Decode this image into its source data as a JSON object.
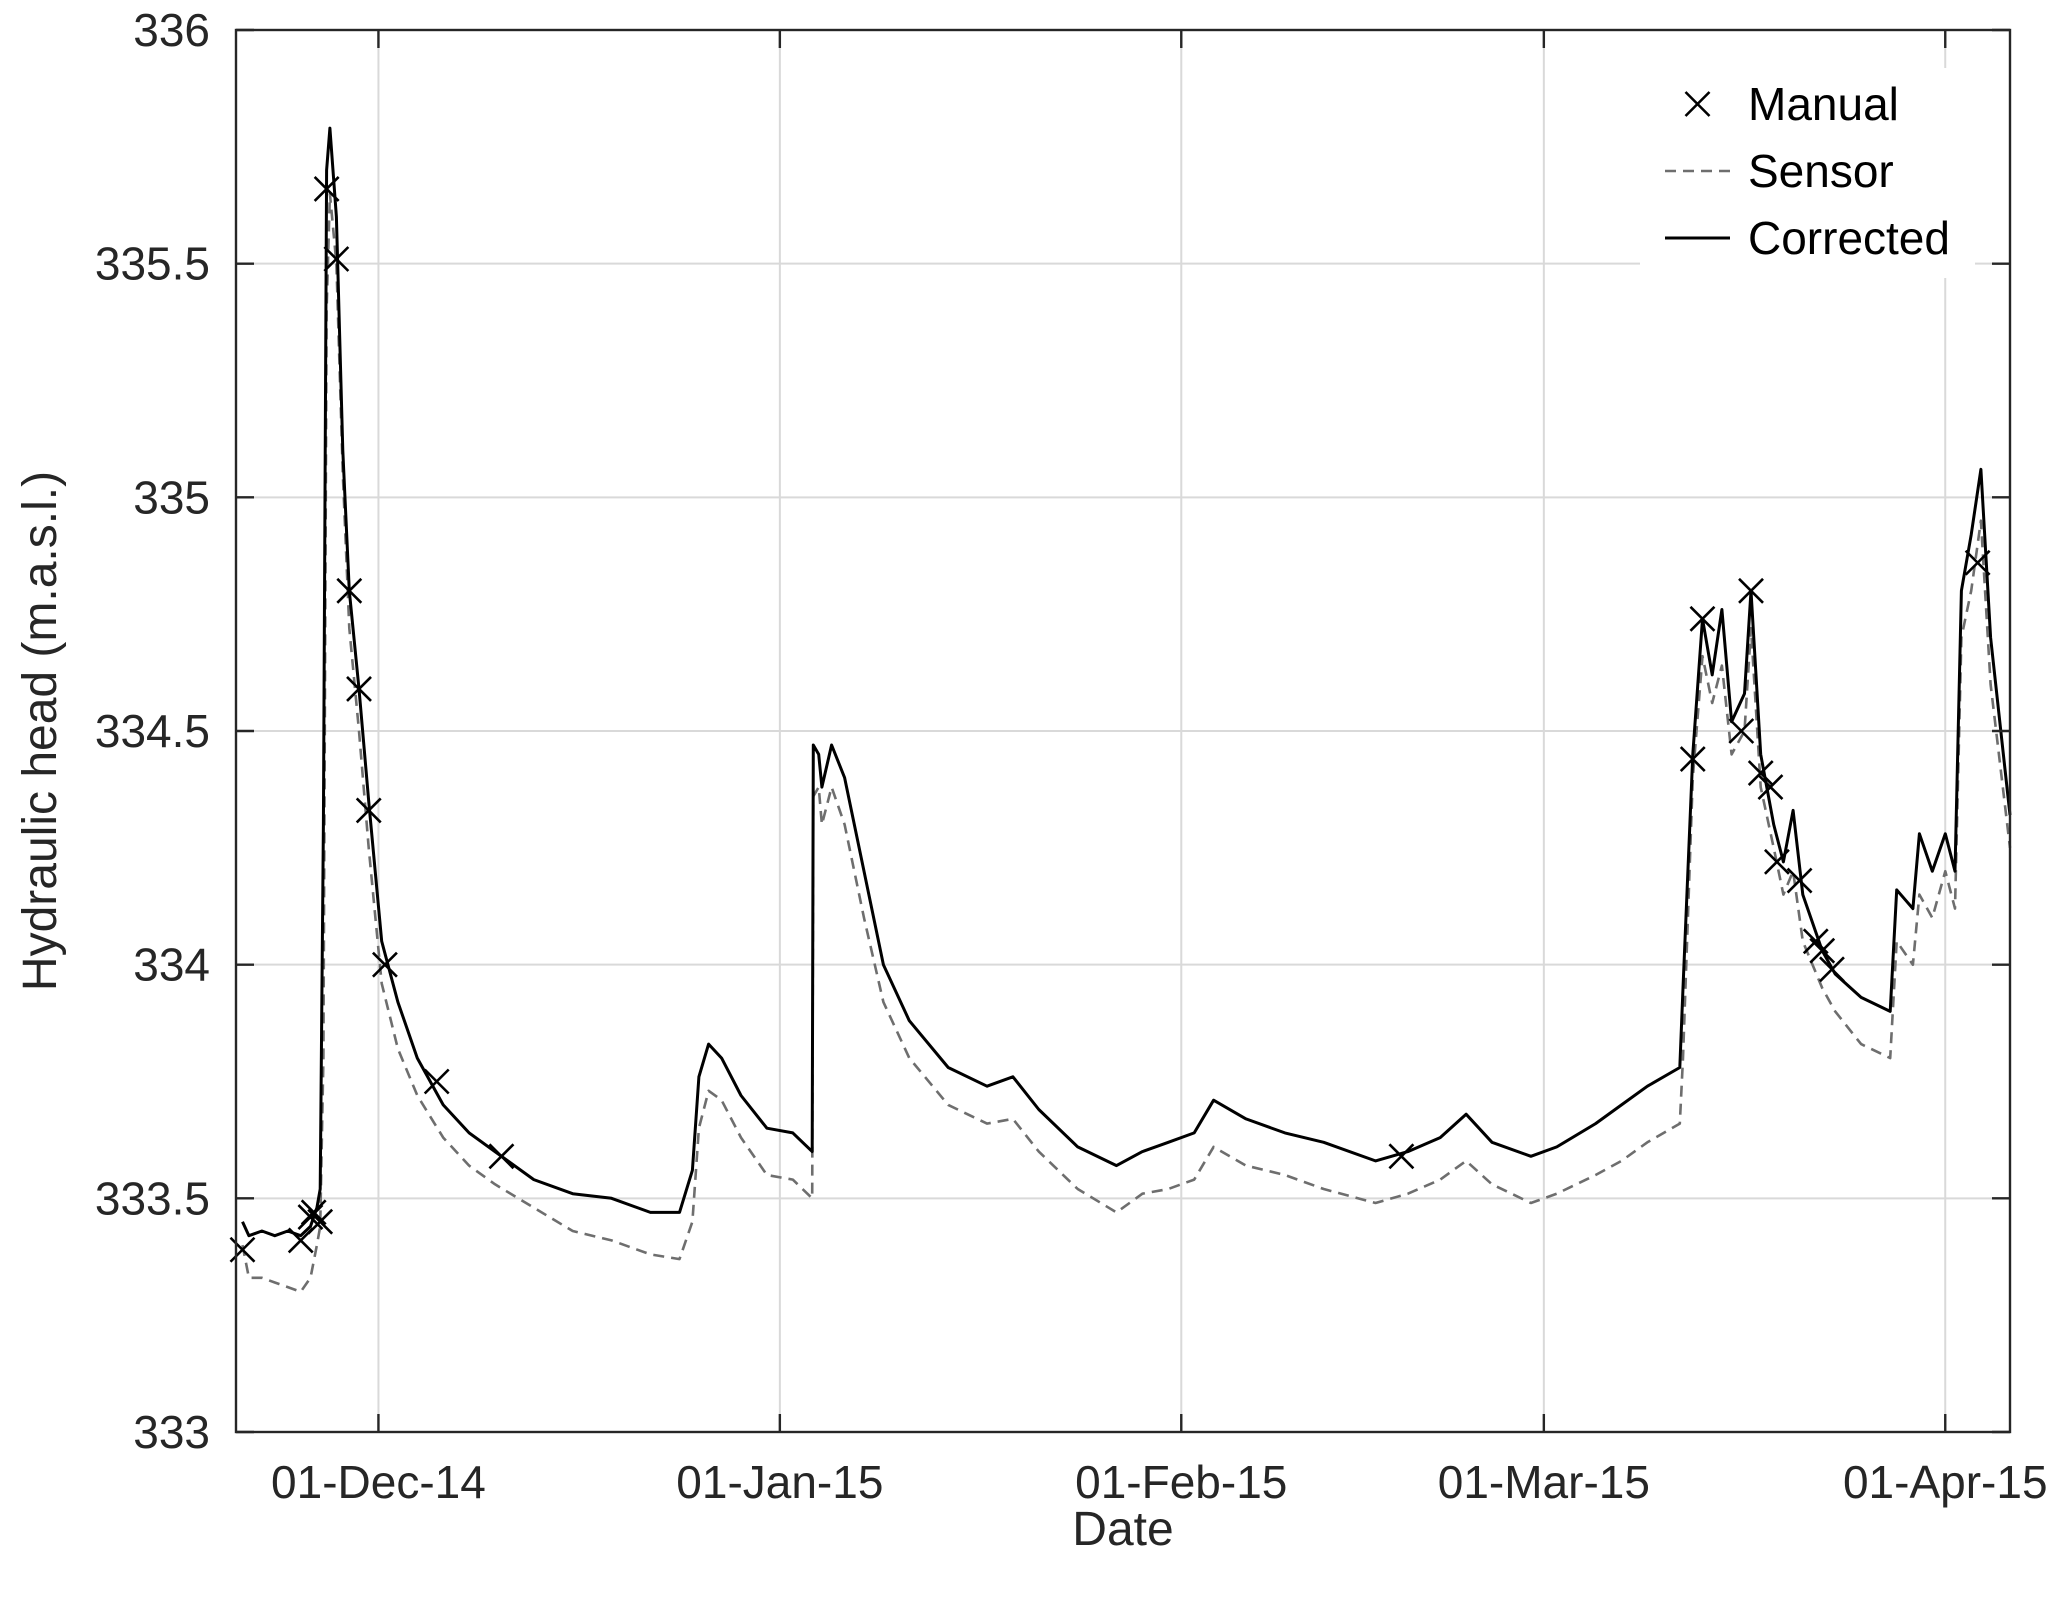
{
  "chart_data": {
    "type": "line",
    "xlabel": "Date",
    "ylabel": "Hydraulic head (m.a.s.l.)",
    "x_axis_type": "date",
    "xlim": [
      "2014-11-20",
      "2015-04-06"
    ],
    "ylim": [
      333,
      336
    ],
    "x_ticks": [
      {
        "date": "2014-12-01",
        "label": "01-Dec-14"
      },
      {
        "date": "2015-01-01",
        "label": "01-Jan-15"
      },
      {
        "date": "2015-02-01",
        "label": "01-Feb-15"
      },
      {
        "date": "2015-03-01",
        "label": "01-Mar-15"
      },
      {
        "date": "2015-04-01",
        "label": "01-Apr-15"
      }
    ],
    "y_ticks": [
      {
        "value": 333,
        "label": "333"
      },
      {
        "value": 333.5,
        "label": "333.5"
      },
      {
        "value": 334,
        "label": "334"
      },
      {
        "value": 334.5,
        "label": "334.5"
      },
      {
        "value": 335,
        "label": "335"
      },
      {
        "value": 335.5,
        "label": "335.5"
      },
      {
        "value": 336,
        "label": "336"
      }
    ],
    "grid": true,
    "legend_position": "top-right",
    "series": [
      {
        "name": "Manual",
        "style": "x-marker",
        "color": "#000000",
        "points": [
          [
            "2014-11-20 12:00",
            333.39
          ],
          [
            "2014-11-25 00:00",
            333.41
          ],
          [
            "2014-11-25 18:00",
            333.46
          ],
          [
            "2014-11-26 00:00",
            333.47
          ],
          [
            "2014-11-26 12:00",
            333.45
          ],
          [
            "2014-11-27 00:00",
            335.66
          ],
          [
            "2014-11-27 18:00",
            335.51
          ],
          [
            "2014-11-28 18:00",
            334.8
          ],
          [
            "2014-11-29 12:00",
            334.59
          ],
          [
            "2014-11-30 06:00",
            334.33
          ],
          [
            "2014-12-01 12:00",
            334.0
          ],
          [
            "2014-12-05 12:00",
            333.75
          ],
          [
            "2014-12-10 12:00",
            333.59
          ],
          [
            "2015-02-18 00:00",
            333.59
          ],
          [
            "2015-03-12 12:00",
            334.44
          ],
          [
            "2015-03-13 06:00",
            334.74
          ],
          [
            "2015-03-16 06:00",
            334.5
          ],
          [
            "2015-03-17 00:00",
            334.8
          ],
          [
            "2015-03-17 18:00",
            334.41
          ],
          [
            "2015-03-18 12:00",
            334.38
          ],
          [
            "2015-03-19 00:00",
            334.22
          ],
          [
            "2015-03-20 18:00",
            334.18
          ],
          [
            "2015-03-22 00:00",
            334.05
          ],
          [
            "2015-03-22 12:00",
            334.03
          ],
          [
            "2015-03-23 06:00",
            333.99
          ],
          [
            "2015-04-03 12:00",
            334.86
          ]
        ]
      },
      {
        "name": "Sensor",
        "style": "dashed",
        "color": "#6e6e6e",
        "points": [
          [
            "2014-11-20 12:00",
            333.4
          ],
          [
            "2014-11-21 00:00",
            333.33
          ],
          [
            "2014-11-22 00:00",
            333.33
          ],
          [
            "2014-11-23 00:00",
            333.32
          ],
          [
            "2014-11-24 00:00",
            333.31
          ],
          [
            "2014-11-25 00:00",
            333.3
          ],
          [
            "2014-11-25 18:00",
            333.33
          ],
          [
            "2014-11-26 06:00",
            333.4
          ],
          [
            "2014-11-26 12:00",
            333.44
          ],
          [
            "2014-11-26 18:00",
            333.8
          ],
          [
            "2014-11-27 00:00",
            335.4
          ],
          [
            "2014-11-27 06:00",
            335.65
          ],
          [
            "2014-11-27 18:00",
            335.5
          ],
          [
            "2014-11-28 06:00",
            335.05
          ],
          [
            "2014-11-28 18:00",
            334.72
          ],
          [
            "2014-11-29 12:00",
            334.5
          ],
          [
            "2014-11-30 06:00",
            334.25
          ],
          [
            "2014-12-01 06:00",
            333.96
          ],
          [
            "2014-12-02 12:00",
            333.82
          ],
          [
            "2014-12-04 00:00",
            333.72
          ],
          [
            "2014-12-06 00:00",
            333.63
          ],
          [
            "2014-12-08 00:00",
            333.57
          ],
          [
            "2014-12-10 00:00",
            333.53
          ],
          [
            "2014-12-13 00:00",
            333.48
          ],
          [
            "2014-12-16 00:00",
            333.43
          ],
          [
            "2014-12-19 00:00",
            333.41
          ],
          [
            "2014-12-22 00:00",
            333.38
          ],
          [
            "2014-12-24 06:00",
            333.37
          ],
          [
            "2014-12-25 06:00",
            333.45
          ],
          [
            "2014-12-25 18:00",
            333.65
          ],
          [
            "2014-12-26 12:00",
            333.73
          ],
          [
            "2014-12-27 12:00",
            333.71
          ],
          [
            "2014-12-29 00:00",
            333.63
          ],
          [
            "2014-12-31 00:00",
            333.55
          ],
          [
            "2015-01-02 00:00",
            333.54
          ],
          [
            "2015-01-03 12:00",
            333.5
          ],
          [
            "2015-01-03 14:00",
            334.36
          ],
          [
            "2015-01-04 00:00",
            334.38
          ],
          [
            "2015-01-04 06:00",
            334.3
          ],
          [
            "2015-01-05 00:00",
            334.38
          ],
          [
            "2015-01-06 00:00",
            334.3
          ],
          [
            "2015-01-07 12:00",
            334.1
          ],
          [
            "2015-01-09 00:00",
            333.92
          ],
          [
            "2015-01-11 00:00",
            333.8
          ],
          [
            "2015-01-14 00:00",
            333.7
          ],
          [
            "2015-01-17 00:00",
            333.66
          ],
          [
            "2015-01-19 00:00",
            333.67
          ],
          [
            "2015-01-21 00:00",
            333.6
          ],
          [
            "2015-01-24 00:00",
            333.52
          ],
          [
            "2015-01-27 00:00",
            333.47
          ],
          [
            "2015-01-29 00:00",
            333.51
          ],
          [
            "2015-01-31 00:00",
            333.52
          ],
          [
            "2015-02-02 00:00",
            333.54
          ],
          [
            "2015-02-03 12:00",
            333.61
          ],
          [
            "2015-02-06 00:00",
            333.57
          ],
          [
            "2015-02-09 00:00",
            333.55
          ],
          [
            "2015-02-12 00:00",
            333.52
          ],
          [
            "2015-02-16 00:00",
            333.49
          ],
          [
            "2015-02-18 12:00",
            333.51
          ],
          [
            "2015-02-21 00:00",
            333.54
          ],
          [
            "2015-02-23 00:00",
            333.58
          ],
          [
            "2015-02-25 00:00",
            333.53
          ],
          [
            "2015-02-28 00:00",
            333.49
          ],
          [
            "2015-03-02 00:00",
            333.51
          ],
          [
            "2015-03-05 00:00",
            333.55
          ],
          [
            "2015-03-07 00:00",
            333.58
          ],
          [
            "2015-03-09 00:00",
            333.62
          ],
          [
            "2015-03-11 12:00",
            333.66
          ],
          [
            "2015-03-11 18:00",
            333.8
          ],
          [
            "2015-03-12 12:00",
            334.4
          ],
          [
            "2015-03-13 06:00",
            334.66
          ],
          [
            "2015-03-14 00:00",
            334.56
          ],
          [
            "2015-03-14 18:00",
            334.64
          ],
          [
            "2015-03-15 12:00",
            334.45
          ],
          [
            "2015-03-16 12:00",
            334.5
          ],
          [
            "2015-03-17 00:00",
            334.72
          ],
          [
            "2015-03-17 18:00",
            334.38
          ],
          [
            "2015-03-18 18:00",
            334.25
          ],
          [
            "2015-03-19 12:00",
            334.15
          ],
          [
            "2015-03-20 06:00",
            334.2
          ],
          [
            "2015-03-21 00:00",
            334.05
          ],
          [
            "2015-03-22 12:00",
            333.95
          ],
          [
            "2015-03-23 12:00",
            333.9
          ],
          [
            "2015-03-25 12:00",
            333.83
          ],
          [
            "2015-03-27 18:00",
            333.8
          ],
          [
            "2015-03-28 06:00",
            334.05
          ],
          [
            "2015-03-29 12:00",
            334.0
          ],
          [
            "2015-03-30 00:00",
            334.15
          ],
          [
            "2015-03-31 00:00",
            334.1
          ],
          [
            "2015-04-01 00:00",
            334.2
          ],
          [
            "2015-04-01 18:00",
            334.12
          ],
          [
            "2015-04-02 06:00",
            334.7
          ],
          [
            "2015-04-03 00:00",
            334.8
          ],
          [
            "2015-04-03 18:00",
            334.95
          ],
          [
            "2015-04-04 12:00",
            334.6
          ],
          [
            "2015-04-06 00:00",
            334.25
          ]
        ]
      },
      {
        "name": "Corrected",
        "style": "solid",
        "color": "#000000",
        "points": [
          [
            "2014-11-20 12:00",
            333.45
          ],
          [
            "2014-11-21 00:00",
            333.42
          ],
          [
            "2014-11-22 00:00",
            333.43
          ],
          [
            "2014-11-23 00:00",
            333.42
          ],
          [
            "2014-11-24 00:00",
            333.43
          ],
          [
            "2014-11-25 00:00",
            333.42
          ],
          [
            "2014-11-25 18:00",
            333.44
          ],
          [
            "2014-11-26 06:00",
            333.48
          ],
          [
            "2014-11-26 12:00",
            333.52
          ],
          [
            "2014-11-26 18:00",
            334.3
          ],
          [
            "2014-11-27 00:00",
            335.7
          ],
          [
            "2014-11-27 06:00",
            335.79
          ],
          [
            "2014-11-27 18:00",
            335.6
          ],
          [
            "2014-11-28 06:00",
            335.1
          ],
          [
            "2014-11-28 18:00",
            334.8
          ],
          [
            "2014-11-29 12:00",
            334.59
          ],
          [
            "2014-11-30 06:00",
            334.35
          ],
          [
            "2014-12-01 06:00",
            334.05
          ],
          [
            "2014-12-02 12:00",
            333.92
          ],
          [
            "2014-12-04 00:00",
            333.8
          ],
          [
            "2014-12-06 00:00",
            333.7
          ],
          [
            "2014-12-08 00:00",
            333.64
          ],
          [
            "2014-12-10 00:00",
            333.6
          ],
          [
            "2014-12-13 00:00",
            333.54
          ],
          [
            "2014-12-16 00:00",
            333.51
          ],
          [
            "2014-12-19 00:00",
            333.5
          ],
          [
            "2014-12-22 00:00",
            333.47
          ],
          [
            "2014-12-24 06:00",
            333.47
          ],
          [
            "2014-12-25 06:00",
            333.56
          ],
          [
            "2014-12-25 18:00",
            333.76
          ],
          [
            "2014-12-26 12:00",
            333.83
          ],
          [
            "2014-12-27 12:00",
            333.8
          ],
          [
            "2014-12-29 00:00",
            333.72
          ],
          [
            "2014-12-31 00:00",
            333.65
          ],
          [
            "2015-01-02 00:00",
            333.64
          ],
          [
            "2015-01-03 12:00",
            333.6
          ],
          [
            "2015-01-03 14:00",
            334.47
          ],
          [
            "2015-01-04 00:00",
            334.45
          ],
          [
            "2015-01-04 06:00",
            334.38
          ],
          [
            "2015-01-05 00:00",
            334.47
          ],
          [
            "2015-01-06 00:00",
            334.4
          ],
          [
            "2015-01-07 12:00",
            334.2
          ],
          [
            "2015-01-09 00:00",
            334.0
          ],
          [
            "2015-01-11 00:00",
            333.88
          ],
          [
            "2015-01-14 00:00",
            333.78
          ],
          [
            "2015-01-17 00:00",
            333.74
          ],
          [
            "2015-01-19 00:00",
            333.76
          ],
          [
            "2015-01-21 00:00",
            333.69
          ],
          [
            "2015-01-24 00:00",
            333.61
          ],
          [
            "2015-01-27 00:00",
            333.57
          ],
          [
            "2015-01-29 00:00",
            333.6
          ],
          [
            "2015-01-31 00:00",
            333.62
          ],
          [
            "2015-02-02 00:00",
            333.64
          ],
          [
            "2015-02-03 12:00",
            333.71
          ],
          [
            "2015-02-06 00:00",
            333.67
          ],
          [
            "2015-02-09 00:00",
            333.64
          ],
          [
            "2015-02-12 00:00",
            333.62
          ],
          [
            "2015-02-16 00:00",
            333.58
          ],
          [
            "2015-02-18 12:00",
            333.6
          ],
          [
            "2015-02-21 00:00",
            333.63
          ],
          [
            "2015-02-23 00:00",
            333.68
          ],
          [
            "2015-02-25 00:00",
            333.62
          ],
          [
            "2015-02-28 00:00",
            333.59
          ],
          [
            "2015-03-02 00:00",
            333.61
          ],
          [
            "2015-03-05 00:00",
            333.66
          ],
          [
            "2015-03-07 00:00",
            333.7
          ],
          [
            "2015-03-09 00:00",
            333.74
          ],
          [
            "2015-03-11 12:00",
            333.78
          ],
          [
            "2015-03-11 18:00",
            333.95
          ],
          [
            "2015-03-12 12:00",
            334.45
          ],
          [
            "2015-03-13 06:00",
            334.74
          ],
          [
            "2015-03-14 00:00",
            334.62
          ],
          [
            "2015-03-14 18:00",
            334.76
          ],
          [
            "2015-03-15 12:00",
            334.52
          ],
          [
            "2015-03-16 12:00",
            334.58
          ],
          [
            "2015-03-17 00:00",
            334.8
          ],
          [
            "2015-03-17 18:00",
            334.45
          ],
          [
            "2015-03-18 18:00",
            334.3
          ],
          [
            "2015-03-19 12:00",
            334.22
          ],
          [
            "2015-03-20 06:00",
            334.33
          ],
          [
            "2015-03-21 00:00",
            334.15
          ],
          [
            "2015-03-22 12:00",
            334.03
          ],
          [
            "2015-03-23 12:00",
            333.98
          ],
          [
            "2015-03-25 12:00",
            333.93
          ],
          [
            "2015-03-27 18:00",
            333.9
          ],
          [
            "2015-03-28 06:00",
            334.16
          ],
          [
            "2015-03-29 12:00",
            334.12
          ],
          [
            "2015-03-30 00:00",
            334.28
          ],
          [
            "2015-03-31 00:00",
            334.2
          ],
          [
            "2015-04-01 00:00",
            334.28
          ],
          [
            "2015-04-01 18:00",
            334.2
          ],
          [
            "2015-04-02 06:00",
            334.8
          ],
          [
            "2015-04-03 00:00",
            334.92
          ],
          [
            "2015-04-03 18:00",
            335.06
          ],
          [
            "2015-04-04 12:00",
            334.7
          ],
          [
            "2015-04-06 00:00",
            334.32
          ]
        ]
      }
    ]
  }
}
